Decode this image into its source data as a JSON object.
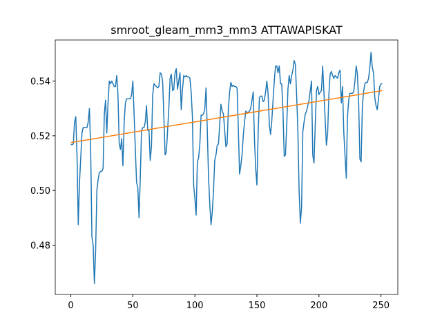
{
  "chart_data": {
    "type": "line",
    "title": "smroot_gleam_mm3_mm3 ATTAWAPISKAT",
    "xlim": [
      -12.55,
      263.55
    ],
    "xticks": [
      0,
      50,
      100,
      150,
      200,
      250
    ],
    "ylim": [
      0.462,
      0.555
    ],
    "yticks": [
      0.48,
      {
        "value": 0.5,
        "label": "0.50"
      },
      0.52,
      0.54
    ],
    "series": [
      {
        "color": "#1f77b4",
        "values": [
          0.5168,
          0.5168,
          0.517,
          0.525,
          0.527,
          0.5125,
          0.4875,
          0.503,
          0.512,
          0.521,
          0.523,
          0.523,
          0.523,
          0.523,
          0.525,
          0.53,
          0.515,
          0.483,
          0.48,
          0.466,
          0.478,
          0.5,
          0.504,
          0.5065,
          0.507,
          0.507,
          0.508,
          0.528,
          0.533,
          0.521,
          0.532,
          0.54,
          0.539,
          0.54,
          0.539,
          0.538,
          0.538,
          0.542,
          0.535,
          0.517,
          0.515,
          0.519,
          0.509,
          0.525,
          0.532,
          0.5335,
          0.5335,
          0.5335,
          0.5335,
          0.535,
          0.54,
          0.528,
          0.515,
          0.503,
          0.501,
          0.49,
          0.505,
          0.522,
          0.523,
          0.523,
          0.525,
          0.531,
          0.522,
          0.522,
          0.511,
          0.516,
          0.535,
          0.539,
          0.5385,
          0.538,
          0.5375,
          0.538,
          0.543,
          0.5425,
          0.54,
          0.527,
          0.513,
          0.514,
          0.522,
          0.53,
          0.541,
          0.5425,
          0.5365,
          0.537,
          0.543,
          0.5445,
          0.537,
          0.54,
          0.543,
          0.5295,
          0.537,
          0.542,
          0.5415,
          0.542,
          0.5415,
          0.5415,
          0.541,
          0.536,
          0.527,
          0.502,
          0.497,
          0.491,
          0.5105,
          0.512,
          0.517,
          0.5275,
          0.5275,
          0.528,
          0.53,
          0.5375,
          0.522,
          0.505,
          0.495,
          0.4875,
          0.492,
          0.5,
          0.511,
          0.513,
          0.5165,
          0.517,
          0.524,
          0.5315,
          0.529,
          0.528,
          0.522,
          0.516,
          0.517,
          0.53,
          0.536,
          0.5395,
          0.538,
          0.5385,
          0.538,
          0.538,
          0.5375,
          0.523,
          0.506,
          0.509,
          0.513,
          0.52,
          0.525,
          0.529,
          0.5285,
          0.5285,
          0.529,
          0.53,
          0.533,
          0.536,
          0.519,
          0.508,
          0.502,
          0.521,
          0.534,
          0.5345,
          0.5345,
          0.5325,
          0.533,
          0.536,
          0.54,
          0.5355,
          0.524,
          0.5205,
          0.5255,
          0.533,
          0.54,
          0.5455,
          0.5455,
          0.543,
          0.5455,
          0.539,
          0.539,
          0.529,
          0.5125,
          0.513,
          0.5235,
          0.537,
          0.542,
          0.539,
          0.542,
          0.544,
          0.5475,
          0.546,
          0.535,
          0.522,
          0.5,
          0.488,
          0.494,
          0.5215,
          0.525,
          0.528,
          0.529,
          0.531,
          0.533,
          0.5365,
          0.54,
          0.513,
          0.51,
          0.524,
          0.5365,
          0.538,
          0.535,
          0.536,
          0.5365,
          0.5455,
          0.536,
          0.526,
          0.5165,
          0.521,
          0.535,
          0.5425,
          0.5435,
          0.542,
          0.541,
          0.542,
          0.5415,
          0.541,
          0.543,
          0.544,
          0.532,
          0.538,
          0.5215,
          0.513,
          0.5045,
          0.527,
          0.533,
          0.5355,
          0.5355,
          0.5355,
          0.536,
          0.54,
          0.5455,
          0.5425,
          0.532,
          0.5115,
          0.5105,
          0.531,
          0.536,
          0.539,
          0.5395,
          0.5395,
          0.541,
          0.545,
          0.5505,
          0.545,
          0.543,
          0.534,
          0.531,
          0.5295,
          0.5335,
          0.538,
          0.539,
          0.539
        ]
      },
      {
        "color": "#ff7f0e",
        "x": [
          0,
          251
        ],
        "values": [
          0.5175,
          0.5365
        ]
      }
    ]
  }
}
